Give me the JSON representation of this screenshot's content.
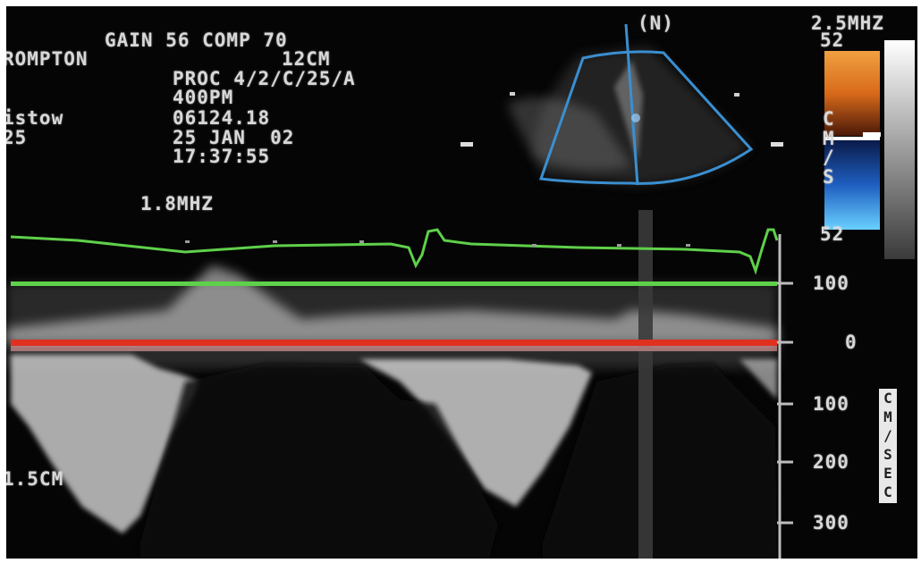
{
  "header": {
    "line1": "GAIN 56 COMP 70",
    "line2_left": "ROMPTON",
    "line2_right": "12CM",
    "line3": "PROC 4/2/C/25/A",
    "line4": "400PM",
    "line5_left": "istow",
    "line5_right": "06124.18",
    "line6_left": "25",
    "line6_right": "25 JAN  02",
    "line7": "17:37:55",
    "doppler_freq": "1.8MHZ",
    "depth_label": "1.5CM"
  },
  "sector": {
    "label": "(N)",
    "color": "#3a8fd0"
  },
  "color_bar": {
    "freq": "2.5MHZ",
    "top_value": "52",
    "bottom_value": "52",
    "unit_c": "C",
    "unit_m": "M",
    "unit_slash": "/",
    "unit_s": "S",
    "warm_color": "#e06a1a",
    "cool_color": "#1e6fc8"
  },
  "velocity_scale": {
    "ticks": [
      "100",
      "0",
      "100",
      "200",
      "300"
    ],
    "side_label": [
      "C",
      "M",
      "/",
      "S",
      "E",
      "C"
    ]
  },
  "spectral": {
    "baseline_color": "#e03020",
    "ecg_color": "#5fd04a"
  }
}
